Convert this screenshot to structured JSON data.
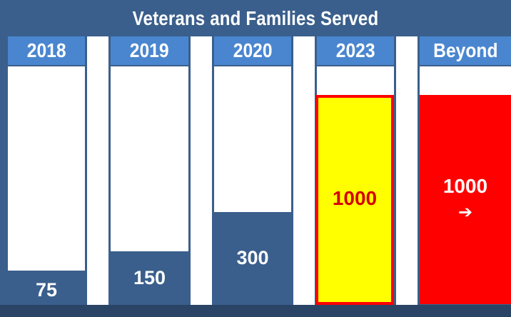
{
  "colors": {
    "background": "#3a5f8c",
    "header": "#4a86cf",
    "track": "#ffffff",
    "bar_default": "#3a5f8c",
    "highlight_fill": "#ffff00",
    "highlight_border": "#ff0000",
    "highlight_text": "#d40000",
    "beyond_fill": "#ff0000"
  },
  "chart_data": {
    "type": "bar",
    "title": "Veterans and Families Served",
    "categories": [
      "2018",
      "2019",
      "2020",
      "2023",
      "Beyond"
    ],
    "values": [
      75,
      150,
      300,
      1000,
      1000
    ],
    "value_labels": [
      "75",
      "150",
      "300",
      "1000",
      "1000"
    ],
    "ylim": [
      0,
      1100
    ],
    "grid": false,
    "legend": "none",
    "highlight": {
      "2023": "yellow fill with red outline",
      "Beyond": "red fill with arrow"
    },
    "beyond_icon": "right-arrow-icon"
  }
}
